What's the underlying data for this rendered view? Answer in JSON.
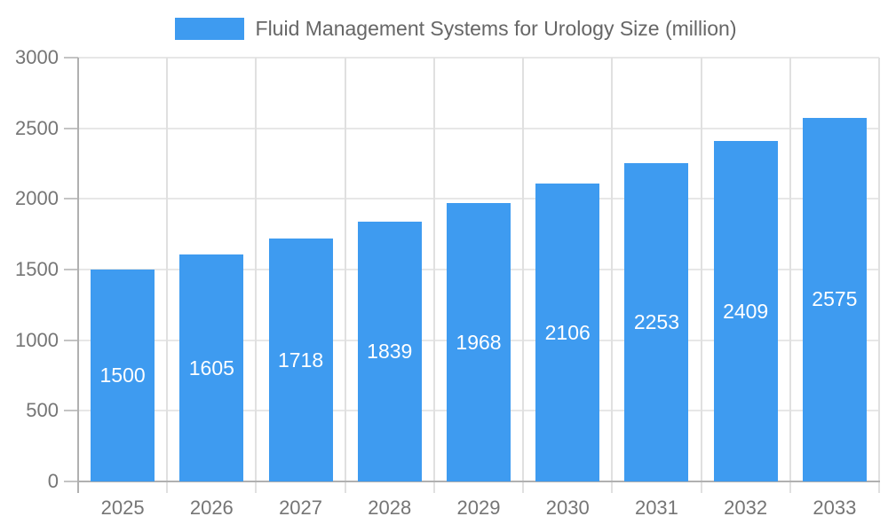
{
  "legend": {
    "label": "Fluid Management Systems for Urology Size (million)"
  },
  "colors": {
    "bar": "#3E9BF0",
    "gridline_h": "#e7e7e7",
    "gridline_v": "#e0e0e0",
    "axis_line": "#b0b0b0",
    "tick": "#c4c4c4",
    "tick_label": "#757575",
    "legend_text": "#666666",
    "bar_label": "#ffffff"
  },
  "chart_data": {
    "type": "bar",
    "title": "Fluid Management Systems for Urology Size (million)",
    "series_name": "Fluid Management Systems for Urology Size (million)",
    "categories": [
      "2025",
      "2026",
      "2027",
      "2028",
      "2029",
      "2030",
      "2031",
      "2032",
      "2033"
    ],
    "values": [
      1500,
      1605,
      1718,
      1839,
      1968,
      2106,
      2253,
      2409,
      2575
    ],
    "xlabel": "",
    "ylabel": "",
    "ylim": [
      0,
      3000
    ],
    "yticks": [
      0,
      500,
      1000,
      1500,
      2000,
      2500,
      3000
    ],
    "grid": true,
    "legend_position": "top",
    "bar_label_position": "inside-center"
  }
}
